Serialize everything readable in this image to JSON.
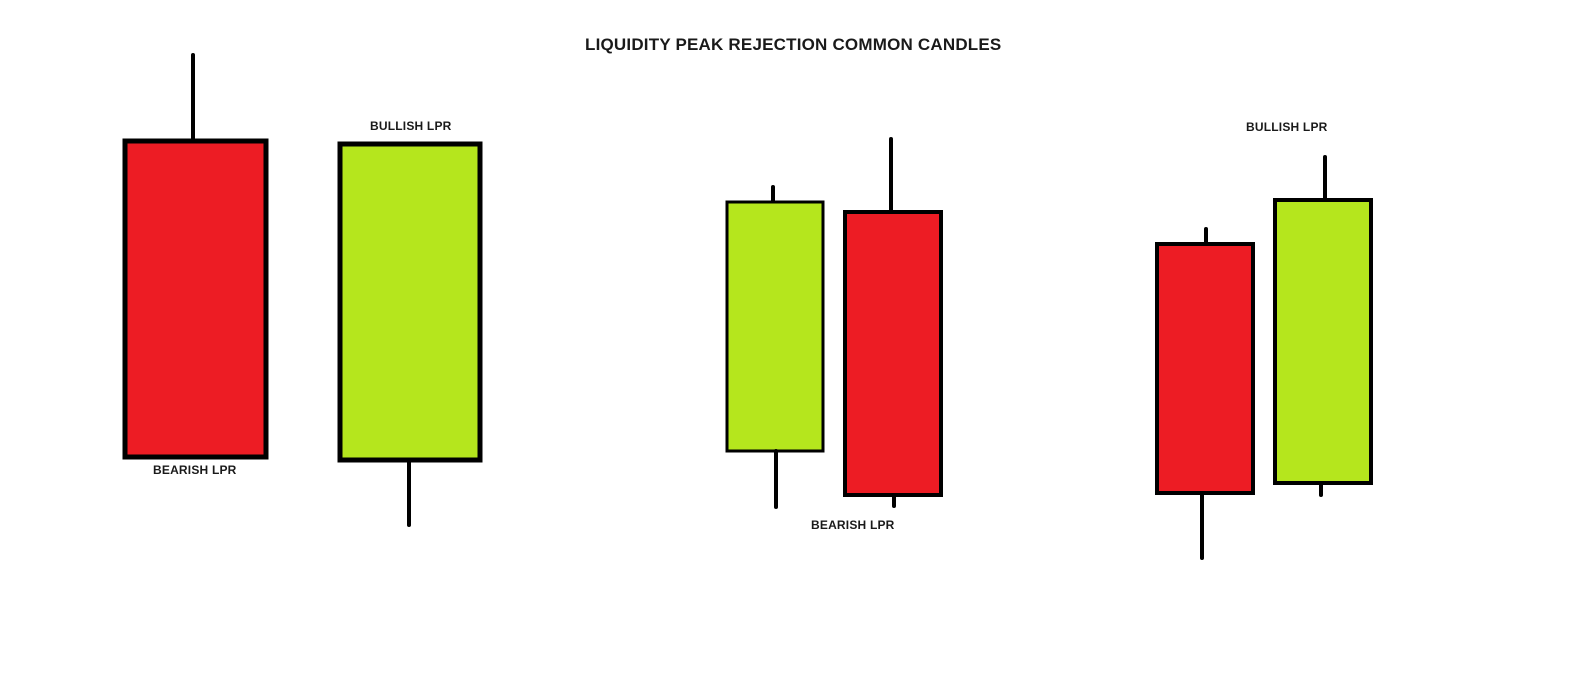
{
  "title": "LIQUIDITY PEAK REJECTION COMMON CANDLES",
  "labels": {
    "bearish_1": "BEARISH LPR",
    "bullish_1": "BULLISH LPR",
    "bearish_2": "BEARISH LPR",
    "bullish_3": "BULLISH LPR"
  },
  "colors": {
    "bearish": "#ed1c24",
    "bullish": "#b5e61d",
    "outline": "#000000",
    "background": "#ffffff"
  },
  "candle_groups": [
    {
      "name": "group-1",
      "candles": [
        {
          "type": "bearish"
        },
        {
          "type": "bullish"
        }
      ]
    },
    {
      "name": "group-2",
      "candles": [
        {
          "type": "bullish"
        },
        {
          "type": "bearish"
        }
      ]
    },
    {
      "name": "group-3",
      "candles": [
        {
          "type": "bearish"
        },
        {
          "type": "bullish"
        }
      ]
    }
  ]
}
